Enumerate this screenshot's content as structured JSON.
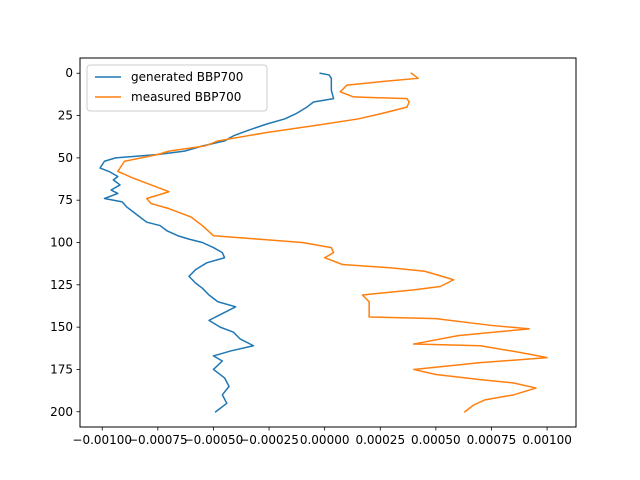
{
  "chart_data": {
    "type": "line",
    "title": "",
    "xlabel": "",
    "ylabel": "",
    "xlim": [
      -0.0011,
      0.00113
    ],
    "ylim": [
      209,
      -9
    ],
    "y_inverted": true,
    "grid": false,
    "legend_position": "upper-left",
    "xticks": [
      -0.001,
      -0.00075,
      -0.0005,
      -0.00025,
      0.0,
      0.00025,
      0.0005,
      0.00075,
      0.001
    ],
    "xtick_labels": [
      "−0.00100",
      "−0.00075",
      "−0.00050",
      "−0.00025",
      "0.00000",
      "0.00025",
      "0.00050",
      "0.00075",
      "0.00100"
    ],
    "yticks": [
      0,
      25,
      50,
      75,
      100,
      125,
      150,
      175,
      200
    ],
    "ytick_labels": [
      "0",
      "25",
      "50",
      "75",
      "100",
      "125",
      "150",
      "175",
      "200"
    ],
    "series": [
      {
        "name": "generated BBP700",
        "color": "#1f77b4",
        "points": [
          [
            -2e-05,
            0
          ],
          [
            2e-05,
            1
          ],
          [
            3e-05,
            3
          ],
          [
            3e-05,
            10
          ],
          [
            4e-05,
            15
          ],
          [
            -5e-05,
            17
          ],
          [
            -8e-05,
            20
          ],
          [
            -0.00013,
            24
          ],
          [
            -0.00018,
            27
          ],
          [
            -0.00026,
            30
          ],
          [
            -0.00035,
            34
          ],
          [
            -0.00041,
            37
          ],
          [
            -0.00045,
            40
          ],
          [
            -0.00055,
            43
          ],
          [
            -0.00063,
            46
          ],
          [
            -0.00075,
            48
          ],
          [
            -0.00094,
            50
          ],
          [
            -0.00099,
            52
          ],
          [
            -0.00101,
            56
          ],
          [
            -0.00097,
            58
          ],
          [
            -0.00093,
            61
          ],
          [
            -0.00095,
            63
          ],
          [
            -0.00092,
            66
          ],
          [
            -0.00096,
            69
          ],
          [
            -0.00093,
            71
          ],
          [
            -0.00099,
            74
          ],
          [
            -0.00091,
            76
          ],
          [
            -0.00089,
            79
          ],
          [
            -0.00086,
            82
          ],
          [
            -0.00083,
            85
          ],
          [
            -0.0008,
            88
          ],
          [
            -0.00074,
            90
          ],
          [
            -0.00071,
            93
          ],
          [
            -0.00066,
            96
          ],
          [
            -0.00061,
            98
          ],
          [
            -0.00055,
            100
          ],
          [
            -0.0005,
            103
          ],
          [
            -0.00046,
            106
          ],
          [
            -0.00045,
            109
          ],
          [
            -0.00053,
            112
          ],
          [
            -0.00058,
            116
          ],
          [
            -0.00061,
            120
          ],
          [
            -0.00058,
            124
          ],
          [
            -0.00055,
            127
          ],
          [
            -0.00052,
            131
          ],
          [
            -0.00048,
            135
          ],
          [
            -0.0004,
            138
          ],
          [
            -0.00046,
            142
          ],
          [
            -0.00052,
            146
          ],
          [
            -0.00047,
            150
          ],
          [
            -0.00041,
            153
          ],
          [
            -0.00038,
            157
          ],
          [
            -0.00032,
            161
          ],
          [
            -0.00042,
            164
          ],
          [
            -0.0005,
            167
          ],
          [
            -0.00046,
            170
          ],
          [
            -0.0005,
            175
          ],
          [
            -0.00045,
            180
          ],
          [
            -0.00043,
            185
          ],
          [
            -0.00046,
            190
          ],
          [
            -0.00044,
            195
          ],
          [
            -0.00049,
            200
          ]
        ]
      },
      {
        "name": "measured BBP700",
        "color": "#ff7f0e",
        "points": [
          [
            0.00039,
            0
          ],
          [
            0.00042,
            3
          ],
          [
            0.00025,
            5
          ],
          [
            0.0001,
            7
          ],
          [
            7e-05,
            11
          ],
          [
            0.00013,
            14
          ],
          [
            0.00037,
            15
          ],
          [
            0.00038,
            17
          ],
          [
            0.00037,
            20
          ],
          [
            0.00025,
            24
          ],
          [
            0.00015,
            27
          ],
          [
            -5e-05,
            31
          ],
          [
            -0.00026,
            35
          ],
          [
            -0.00048,
            40
          ],
          [
            -0.00054,
            43
          ],
          [
            -0.0007,
            46
          ],
          [
            -0.00075,
            48
          ],
          [
            -0.0009,
            52
          ],
          [
            -0.00092,
            56
          ],
          [
            -0.00093,
            58
          ],
          [
            -0.00086,
            62
          ],
          [
            -0.00078,
            66
          ],
          [
            -0.0007,
            70
          ],
          [
            -0.0008,
            74
          ],
          [
            -0.00078,
            77
          ],
          [
            -0.0007,
            80
          ],
          [
            -0.0006,
            85
          ],
          [
            -0.00055,
            90
          ],
          [
            -0.0005,
            96
          ],
          [
            -0.0003,
            98
          ],
          [
            -0.0001,
            100
          ],
          [
            3e-05,
            103
          ],
          [
            4e-05,
            106
          ],
          [
            0.0,
            109
          ],
          [
            8e-05,
            113
          ],
          [
            0.0003,
            115
          ],
          [
            0.00045,
            117
          ],
          [
            0.00058,
            122
          ],
          [
            0.00052,
            126
          ],
          [
            0.0004,
            128
          ],
          [
            0.00017,
            131
          ],
          [
            0.0002,
            135
          ],
          [
            0.0002,
            144
          ],
          [
            0.0005,
            145
          ],
          [
            0.00075,
            149
          ],
          [
            0.00092,
            151
          ],
          [
            0.0006,
            155
          ],
          [
            0.0004,
            160
          ],
          [
            0.0007,
            161
          ],
          [
            0.00088,
            165
          ],
          [
            0.001,
            168
          ],
          [
            0.0007,
            171
          ],
          [
            0.0004,
            175
          ],
          [
            0.0005,
            178
          ],
          [
            0.0007,
            181
          ],
          [
            0.00085,
            183
          ],
          [
            0.00095,
            186
          ],
          [
            0.00085,
            190
          ],
          [
            0.00072,
            193
          ],
          [
            0.00067,
            196
          ],
          [
            0.00063,
            200
          ]
        ]
      }
    ]
  }
}
